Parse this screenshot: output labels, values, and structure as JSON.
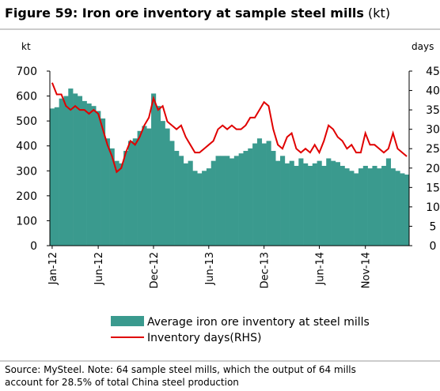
{
  "chart_data": {
    "type": "bar",
    "title": "Figure 59: Iron ore inventory at sample steel mills",
    "title_unit": "(kt)",
    "y_label": "kt",
    "y2_label": "days",
    "categories": [
      "Jan-12",
      null,
      null,
      null,
      null,
      null,
      null,
      null,
      null,
      null,
      "Jun-12",
      null,
      null,
      null,
      null,
      null,
      null,
      null,
      null,
      null,
      null,
      null,
      "Dec-12",
      null,
      null,
      null,
      null,
      null,
      null,
      null,
      null,
      null,
      null,
      null,
      "Jun-13",
      null,
      null,
      null,
      null,
      null,
      null,
      null,
      null,
      null,
      null,
      null,
      "Dec-13",
      null,
      null,
      null,
      null,
      null,
      null,
      null,
      null,
      null,
      null,
      null,
      "Jun-14",
      null,
      null,
      null,
      null,
      null,
      null,
      null,
      null,
      null,
      "Nov-14",
      null,
      null,
      null,
      null,
      null,
      null,
      null,
      null,
      null
    ],
    "series": [
      {
        "name": "Average iron ore inventory at steel mills",
        "type": "bar",
        "color": "#3a9a8e",
        "values": [
          550,
          555,
          590,
          600,
          630,
          610,
          600,
          580,
          570,
          560,
          540,
          510,
          430,
          390,
          340,
          330,
          380,
          420,
          430,
          460,
          480,
          470,
          610,
          560,
          500,
          470,
          420,
          380,
          360,
          330,
          340,
          300,
          290,
          300,
          310,
          340,
          360,
          360,
          360,
          350,
          360,
          370,
          380,
          390,
          410,
          430,
          410,
          420,
          380,
          340,
          360,
          330,
          340,
          320,
          350,
          330,
          320,
          330,
          340,
          320,
          350,
          340,
          335,
          320,
          310,
          300,
          290,
          310,
          320,
          310,
          320,
          310,
          320,
          350,
          310,
          300,
          290,
          285
        ]
      },
      {
        "name": "Inventory days(RHS)",
        "type": "line",
        "axis": "y2",
        "color": "#e00000",
        "values": [
          42,
          39,
          39,
          36,
          35,
          36,
          35,
          35,
          34,
          35,
          34,
          30,
          26,
          23,
          19,
          20,
          24,
          27,
          26,
          28,
          31,
          33,
          38,
          35,
          36,
          32,
          31,
          30,
          31,
          28,
          26,
          24,
          24,
          25,
          26,
          27,
          30,
          31,
          30,
          31,
          30,
          30,
          31,
          33,
          33,
          35,
          37,
          36,
          30,
          26,
          25,
          28,
          29,
          25,
          24,
          25,
          24,
          26,
          24,
          27,
          31,
          30,
          28,
          27,
          25,
          26,
          24,
          24,
          29,
          26,
          26,
          25,
          24,
          25,
          29,
          25,
          24,
          23
        ]
      }
    ],
    "ylim": [
      0,
      700
    ],
    "yticks": [
      0,
      100,
      200,
      300,
      400,
      500,
      600,
      700
    ],
    "y2lim": [
      0,
      45
    ],
    "y2ticks": [
      0,
      5,
      10,
      15,
      20,
      25,
      30,
      35,
      40,
      45
    ],
    "source": [
      "Source:  MySteel. Note: 64 sample steel mills, which the output of 64 mills",
      "account for 28.5% of total China steel production"
    ]
  }
}
